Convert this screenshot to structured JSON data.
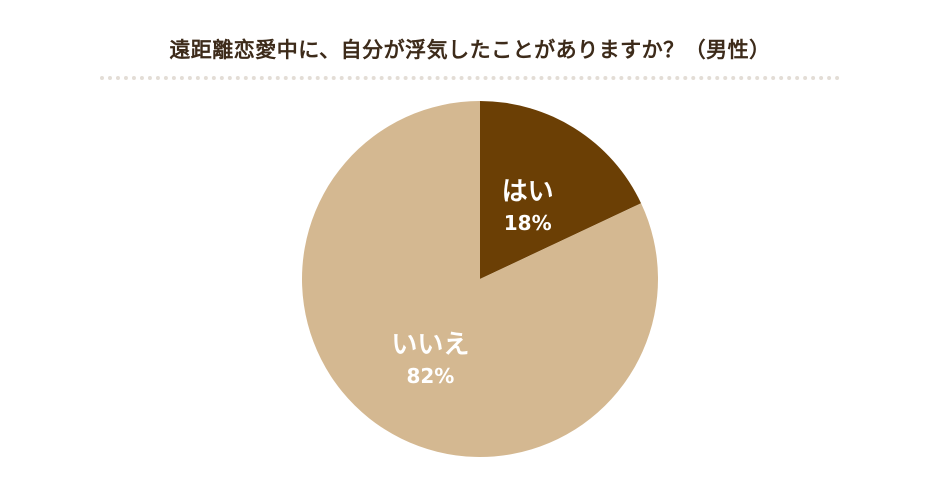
{
  "chart_data": {
    "type": "pie",
    "title": "遠距離恋愛中に、自分が浮気したことがありますか？（男性）",
    "slices": [
      {
        "label": "はい",
        "value": 18,
        "value_label": "18%",
        "color": "#6b3f05"
      },
      {
        "label": "いいえ",
        "value": 82,
        "value_label": "82%",
        "color": "#d4b891"
      }
    ],
    "start_angle": "12 o'clock",
    "direction": "clockwise",
    "legend": "none"
  }
}
